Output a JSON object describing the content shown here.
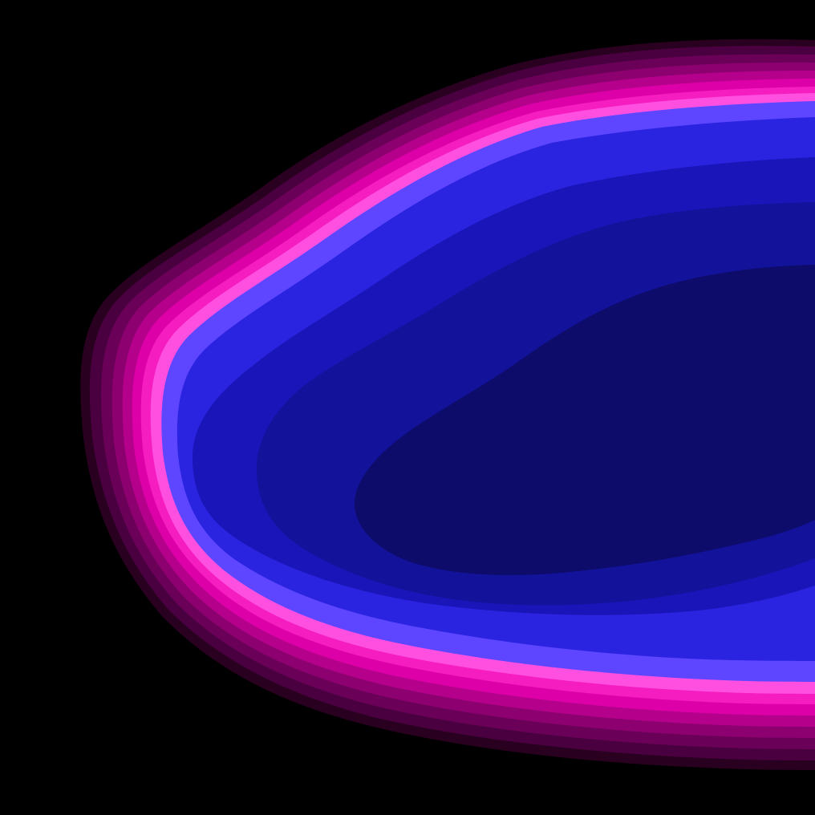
{
  "wallpaper": {
    "background_color": "#000000",
    "bands": [
      {
        "name": "band-outer-1",
        "color": "#2a0020"
      },
      {
        "name": "band-outer-2",
        "color": "#4a0040"
      },
      {
        "name": "band-outer-3",
        "color": "#6a0058"
      },
      {
        "name": "band-outer-4",
        "color": "#8c006f"
      },
      {
        "name": "band-outer-5",
        "color": "#b5008c"
      },
      {
        "name": "band-outer-6",
        "color": "#dd00a8"
      },
      {
        "name": "band-outer-7",
        "color": "#f51cc0"
      },
      {
        "name": "band-pink-glow",
        "color": "#ff4fe0"
      },
      {
        "name": "band-violet",
        "color": "#5e45ff"
      },
      {
        "name": "band-blue-bright",
        "color": "#2a24e0"
      },
      {
        "name": "band-blue",
        "color": "#1a15b8"
      },
      {
        "name": "band-blue-dark",
        "color": "#13129a"
      },
      {
        "name": "band-core",
        "color": "#0d0c6a"
      }
    ]
  }
}
